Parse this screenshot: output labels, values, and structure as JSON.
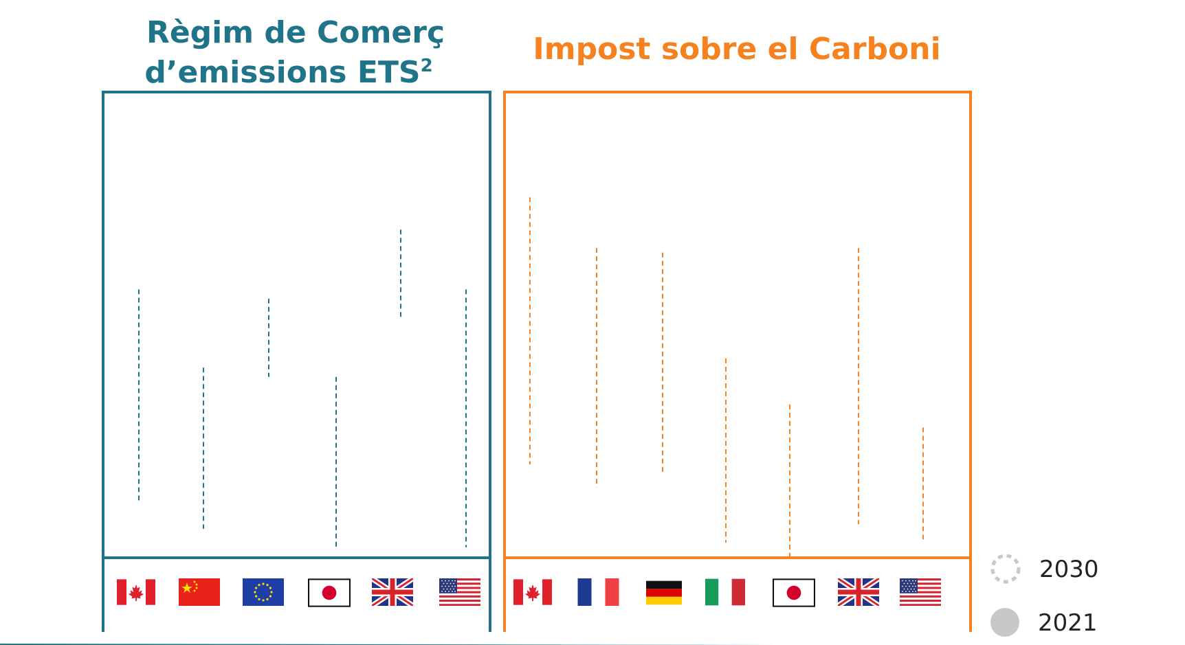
{
  "colors": {
    "ets": "#1f7489",
    "tax": "#f5821f",
    "legend_2030": "#c8c8c8",
    "legend_2021": "#c8c8c8",
    "baseline": "#1f7489"
  },
  "titles": {
    "ets_line1": "Règim de Comerç",
    "ets_line2": "d’emissions ETS",
    "ets_sup": "2",
    "tax": "Impost sobre el Carboni"
  },
  "legend": {
    "item_2030": "2030",
    "item_2021": "2021"
  },
  "chart_data": [
    {
      "type": "range",
      "title": "Règim de Comerç d’emissions ETS2",
      "categories": [
        "canada-flag",
        "china-flag",
        "eu-flag",
        "japan-flag",
        "uk-flag",
        "usa-flag"
      ],
      "ranges": [
        {
          "top": 0.58,
          "bottom": 0.12
        },
        {
          "top": 0.41,
          "bottom": 0.06
        },
        {
          "top": 0.56,
          "bottom": 0.39
        },
        {
          "top": 0.39,
          "bottom": 0.02
        },
        {
          "top": 0.71,
          "bottom": 0.52
        },
        {
          "top": 0.58,
          "bottom": 0.02
        }
      ]
    },
    {
      "type": "range",
      "title": "Impost sobre el Carboni",
      "categories": [
        "canada-flag",
        "france-flag",
        "germany-flag",
        "italy-flag",
        "japan-flag",
        "uk-flag",
        "usa-flag"
      ],
      "ranges": [
        {
          "top": 0.78,
          "bottom": 0.2
        },
        {
          "top": 0.67,
          "bottom": 0.15
        },
        {
          "top": 0.66,
          "bottom": 0.18
        },
        {
          "top": 0.43,
          "bottom": 0.03
        },
        {
          "top": 0.33,
          "bottom": 0.0
        },
        {
          "top": 0.67,
          "bottom": 0.07
        },
        {
          "top": 0.28,
          "bottom": 0.03
        }
      ]
    }
  ]
}
